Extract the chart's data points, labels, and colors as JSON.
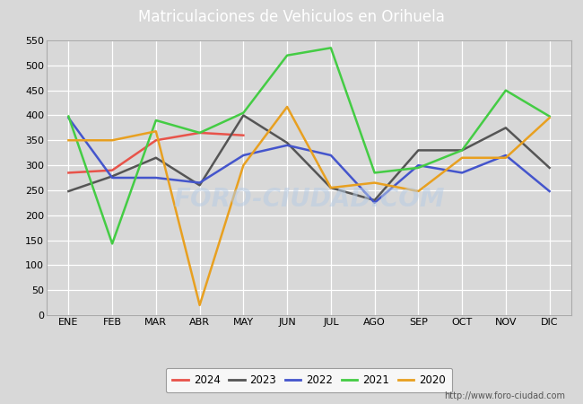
{
  "title": "Matriculaciones de Vehiculos en Orihuela",
  "months": [
    "ENE",
    "FEB",
    "MAR",
    "ABR",
    "MAY",
    "JUN",
    "JUL",
    "AGO",
    "SEP",
    "OCT",
    "NOV",
    "DIC"
  ],
  "series": {
    "2024": [
      285,
      290,
      350,
      365,
      360,
      null,
      null,
      null,
      null,
      null,
      null,
      null
    ],
    "2023": [
      248,
      278,
      315,
      260,
      400,
      345,
      255,
      230,
      330,
      330,
      375,
      295
    ],
    "2022": [
      395,
      275,
      275,
      265,
      320,
      340,
      320,
      225,
      300,
      285,
      320,
      248
    ],
    "2021": [
      398,
      143,
      390,
      365,
      405,
      520,
      535,
      285,
      295,
      330,
      450,
      398
    ],
    "2020": [
      350,
      350,
      368,
      20,
      300,
      417,
      255,
      265,
      248,
      315,
      315,
      395
    ]
  },
  "colors": {
    "2024": "#e8534a",
    "2023": "#555555",
    "2022": "#4455cc",
    "2021": "#44cc44",
    "2020": "#e8a020"
  },
  "ylim": [
    0,
    550
  ],
  "yticks": [
    0,
    50,
    100,
    150,
    200,
    250,
    300,
    350,
    400,
    450,
    500,
    550
  ],
  "fig_bg": "#d8d8d8",
  "plot_bg": "#d8d8d8",
  "title_bg": "#5588cc",
  "title_color": "white",
  "footer_text": "http://www.foro-ciudad.com"
}
